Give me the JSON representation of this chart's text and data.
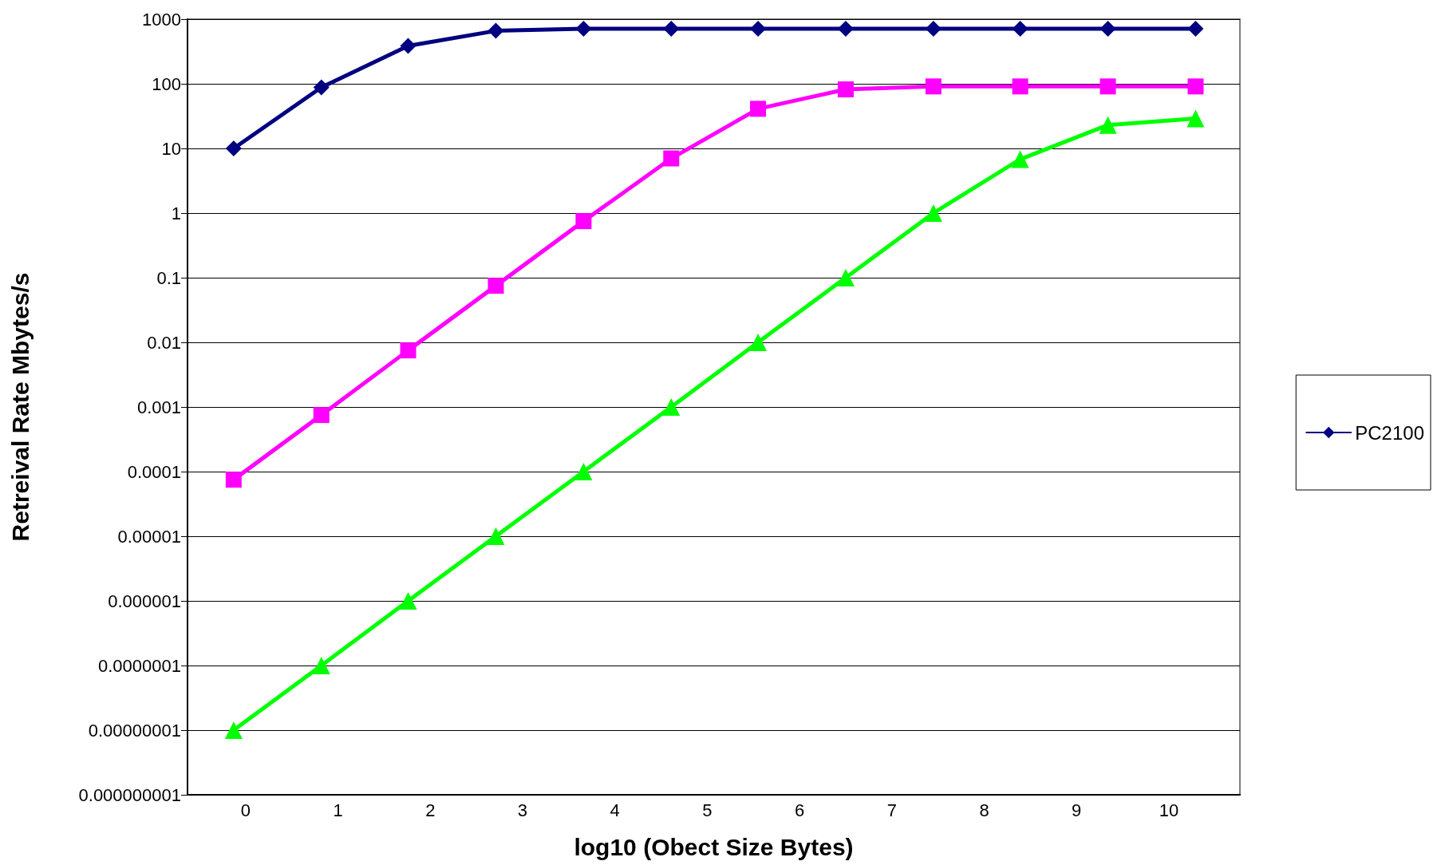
{
  "chart_data": {
    "type": "line",
    "xlabel": "log10 (Obect Size Bytes)",
    "ylabel": "Retreival Rate Mbytes/s",
    "x": [
      -0.13,
      0.82,
      1.76,
      2.71,
      3.66,
      4.61,
      5.55,
      6.5,
      7.45,
      8.39,
      9.34,
      10.29
    ],
    "xlim": [
      -0.63,
      10.77
    ],
    "xticks": [
      0,
      1,
      2,
      3,
      4,
      5,
      6,
      7,
      8,
      9,
      10
    ],
    "ylim": [
      1e-09,
      1000
    ],
    "yticks": [
      {
        "value": 1e-09,
        "label": "0.000000001"
      },
      {
        "value": 1e-08,
        "label": "0.00000001"
      },
      {
        "value": 1e-07,
        "label": "0.0000001"
      },
      {
        "value": 1e-06,
        "label": "0.000001"
      },
      {
        "value": 1e-05,
        "label": "0.00001"
      },
      0.0001,
      0.001,
      0.01,
      0.1,
      1,
      10,
      100,
      1000
    ],
    "log": "y",
    "grid": "y",
    "legend": "right",
    "series": [
      {
        "name": "PC2100",
        "color": "#000080",
        "marker": "diamond",
        "values": [
          10,
          88,
          385,
          660,
          710,
          710,
          710,
          710,
          710,
          710,
          710,
          710
        ]
      },
      {
        "color": "#ff00ff",
        "marker": "square",
        "values": [
          7.5e-05,
          0.00075,
          0.0075,
          0.075,
          0.75,
          7,
          41,
          82,
          91,
          91,
          91,
          91
        ]
      },
      {
        "color": "#00ff00",
        "marker": "triangle",
        "values": [
          1e-08,
          1e-07,
          1e-06,
          1e-05,
          0.0001,
          0.001,
          0.01,
          0.1,
          1,
          6.8,
          23,
          29
        ]
      }
    ]
  }
}
